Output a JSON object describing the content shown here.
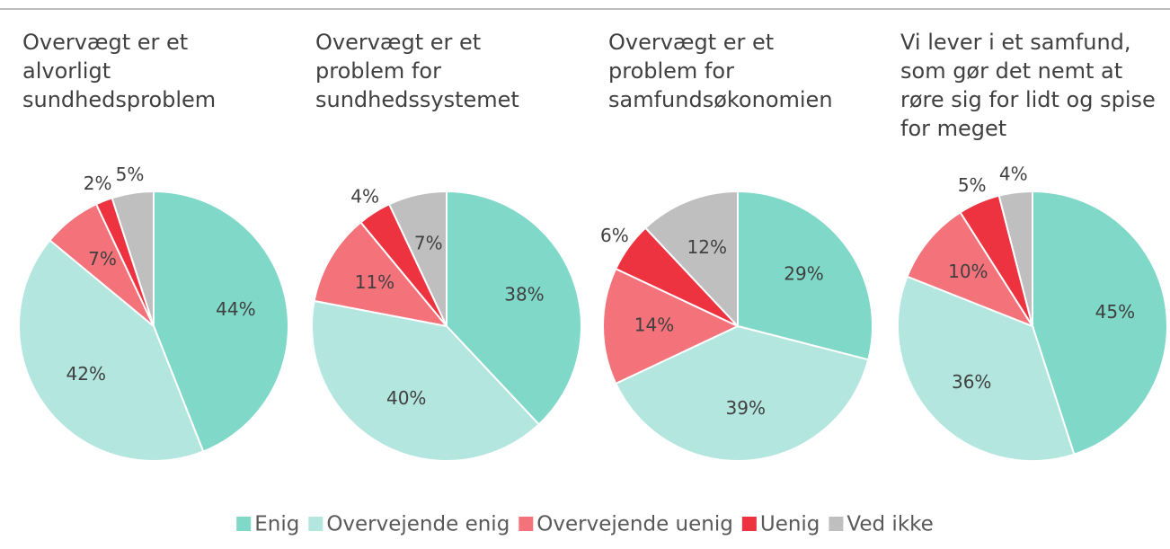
{
  "legend": {
    "labels": [
      "Enig",
      "Overvejende enig",
      "Overvejende uenig",
      "Uenig",
      "Ved ikke"
    ],
    "colors": [
      "#7fd8c8",
      "#b3e6de",
      "#f4727a",
      "#ee3340",
      "#c0bfc0"
    ]
  },
  "chart_data": [
    {
      "type": "pie",
      "title": [
        "Overvægt er et",
        "alvorligt",
        "sundhedsproblem"
      ],
      "values": [
        44,
        42,
        7,
        2,
        5
      ],
      "value_labels": [
        "44%",
        "42%",
        "7%",
        "2%",
        "5%"
      ]
    },
    {
      "type": "pie",
      "title": [
        "Overvægt er et",
        "problem for",
        "sundhedssystemet"
      ],
      "values": [
        38,
        40,
        11,
        4,
        7
      ],
      "value_labels": [
        "38%",
        "40%",
        "11%",
        "4%",
        "7%"
      ]
    },
    {
      "type": "pie",
      "title": [
        "Overvægt er et",
        "problem for",
        "samfundsøkonomien"
      ],
      "values": [
        29,
        39,
        14,
        6,
        12
      ],
      "value_labels": [
        "29%",
        "39%",
        "14%",
        "6%",
        "12%"
      ]
    },
    {
      "type": "pie",
      "title": [
        "Vi lever i et samfund,",
        "som gør det nemt at",
        "røre sig for lidt og spise",
        "for meget"
      ],
      "values": [
        45,
        36,
        10,
        5,
        4
      ],
      "value_labels": [
        "45%",
        "36%",
        "10%",
        "5%",
        "4%"
      ]
    }
  ]
}
